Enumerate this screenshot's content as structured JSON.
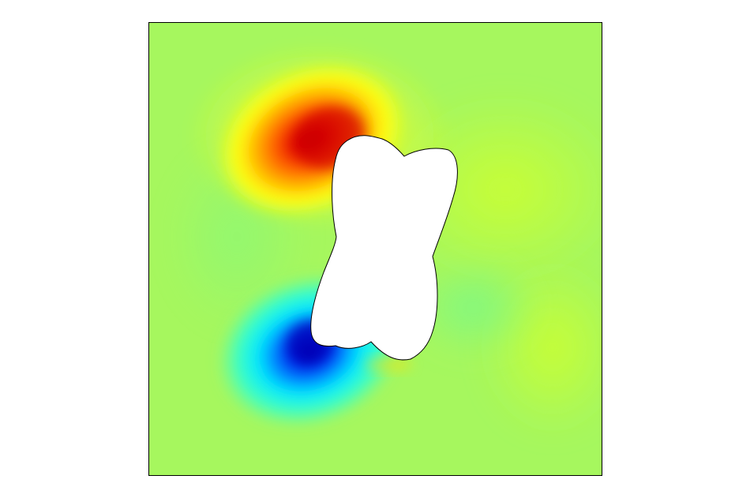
{
  "figure": {
    "description_free": true,
    "colormap": "jet",
    "background_field_color": "#a6f75e",
    "frame_color": "#000000",
    "hole_fill": "#ffffff",
    "hot_spot_color": "#c80000",
    "cold_spot_color": "#0000b4"
  }
}
